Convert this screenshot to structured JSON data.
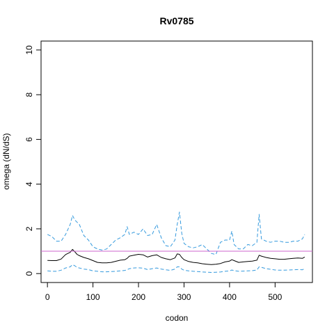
{
  "chart_data": {
    "type": "line",
    "title": "Rv0785",
    "xlabel": "codon",
    "ylabel": "omega (dN/dS)",
    "xlim": [
      -14,
      582
    ],
    "ylim": [
      -0.4,
      10.4
    ],
    "x_ticks": [
      0,
      100,
      200,
      300,
      400,
      500
    ],
    "y_ticks": [
      0,
      2,
      4,
      6,
      8,
      10
    ],
    "grid": false,
    "reference_line": {
      "y": 1,
      "color": "#cc66cc"
    },
    "series": [
      {
        "style": "solid",
        "color": "#000000",
        "x": [
          0,
          10,
          20,
          30,
          40,
          50,
          55,
          60,
          65,
          70,
          80,
          90,
          100,
          110,
          120,
          130,
          140,
          150,
          160,
          170,
          175,
          180,
          190,
          200,
          210,
          220,
          230,
          240,
          250,
          260,
          270,
          280,
          285,
          290,
          295,
          300,
          310,
          320,
          330,
          340,
          350,
          360,
          370,
          380,
          390,
          400,
          405,
          410,
          420,
          430,
          440,
          450,
          460,
          465,
          470,
          480,
          490,
          500,
          510,
          520,
          530,
          540,
          550,
          560,
          565
        ],
        "values": [
          0.59,
          0.58,
          0.58,
          0.65,
          0.85,
          0.95,
          1.08,
          0.98,
          0.86,
          0.8,
          0.72,
          0.66,
          0.58,
          0.5,
          0.48,
          0.48,
          0.5,
          0.55,
          0.6,
          0.62,
          0.68,
          0.78,
          0.82,
          0.86,
          0.84,
          0.74,
          0.8,
          0.84,
          0.72,
          0.66,
          0.62,
          0.7,
          0.88,
          0.86,
          0.72,
          0.62,
          0.54,
          0.5,
          0.48,
          0.44,
          0.42,
          0.4,
          0.42,
          0.45,
          0.52,
          0.56,
          0.62,
          0.58,
          0.5,
          0.52,
          0.54,
          0.56,
          0.6,
          0.82,
          0.78,
          0.72,
          0.68,
          0.66,
          0.64,
          0.64,
          0.66,
          0.68,
          0.7,
          0.68,
          0.74
        ]
      },
      {
        "style": "dashed",
        "color": "#3399dd",
        "x": [
          0,
          10,
          20,
          30,
          40,
          50,
          55,
          60,
          65,
          70,
          80,
          90,
          100,
          110,
          120,
          130,
          140,
          150,
          160,
          170,
          175,
          180,
          190,
          200,
          210,
          220,
          230,
          240,
          250,
          260,
          270,
          280,
          285,
          290,
          295,
          300,
          310,
          320,
          330,
          340,
          350,
          360,
          370,
          380,
          390,
          400,
          405,
          410,
          420,
          430,
          440,
          450,
          460,
          465,
          470,
          480,
          490,
          500,
          510,
          520,
          530,
          540,
          550,
          560,
          565
        ],
        "values": [
          1.75,
          1.65,
          1.45,
          1.45,
          1.75,
          2.2,
          2.6,
          2.4,
          2.3,
          2.2,
          1.7,
          1.5,
          1.2,
          1.1,
          1.05,
          1.1,
          1.3,
          1.5,
          1.6,
          1.75,
          2.1,
          1.75,
          1.85,
          1.75,
          2.0,
          1.7,
          1.75,
          2.2,
          1.6,
          1.25,
          1.2,
          1.5,
          2.2,
          2.75,
          1.8,
          1.35,
          1.2,
          1.15,
          1.2,
          1.3,
          1.1,
          0.9,
          0.85,
          1.4,
          1.5,
          1.5,
          1.9,
          1.3,
          1.1,
          1.1,
          1.3,
          1.25,
          1.4,
          2.65,
          1.55,
          1.45,
          1.4,
          1.45,
          1.45,
          1.4,
          1.4,
          1.45,
          1.45,
          1.55,
          1.75
        ]
      },
      {
        "style": "dashed",
        "color": "#3399dd",
        "x": [
          0,
          10,
          20,
          30,
          40,
          50,
          55,
          60,
          65,
          70,
          80,
          90,
          100,
          110,
          120,
          130,
          140,
          150,
          160,
          170,
          175,
          180,
          190,
          200,
          210,
          220,
          230,
          240,
          250,
          260,
          270,
          280,
          285,
          290,
          295,
          300,
          310,
          320,
          330,
          340,
          350,
          360,
          370,
          380,
          390,
          400,
          405,
          410,
          420,
          430,
          440,
          450,
          460,
          465,
          470,
          480,
          490,
          500,
          510,
          520,
          530,
          540,
          550,
          560,
          565
        ],
        "values": [
          0.12,
          0.1,
          0.1,
          0.15,
          0.25,
          0.3,
          0.4,
          0.35,
          0.28,
          0.25,
          0.2,
          0.18,
          0.12,
          0.1,
          0.08,
          0.08,
          0.09,
          0.1,
          0.12,
          0.14,
          0.17,
          0.22,
          0.25,
          0.26,
          0.24,
          0.18,
          0.22,
          0.25,
          0.2,
          0.17,
          0.14,
          0.2,
          0.3,
          0.3,
          0.2,
          0.15,
          0.12,
          0.1,
          0.09,
          0.07,
          0.06,
          0.05,
          0.06,
          0.07,
          0.1,
          0.12,
          0.16,
          0.13,
          0.1,
          0.11,
          0.12,
          0.13,
          0.16,
          0.3,
          0.28,
          0.22,
          0.19,
          0.16,
          0.15,
          0.15,
          0.16,
          0.17,
          0.18,
          0.17,
          0.22
        ]
      }
    ]
  },
  "colors": {
    "axis": "#000000",
    "ci_band": "#3399dd",
    "mean": "#000000",
    "reference": "#cc66cc"
  }
}
